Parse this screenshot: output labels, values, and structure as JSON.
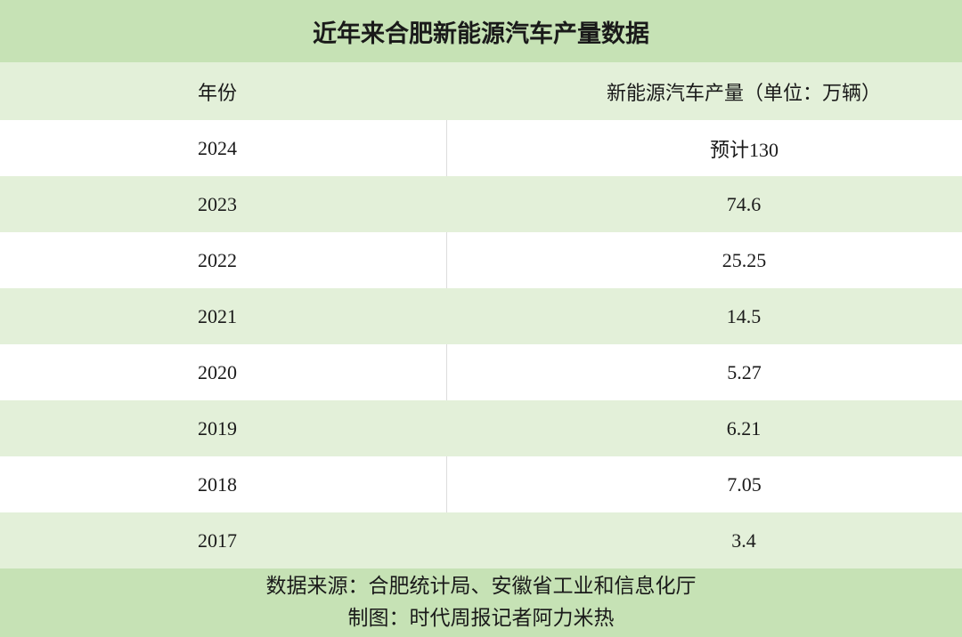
{
  "header": {
    "title": "近年来合肥新能源汽车产量数据"
  },
  "table": {
    "columns": [
      "年份",
      "新能源汽车产量（单位：万辆）"
    ],
    "rows": [
      [
        "2024",
        "预计130"
      ],
      [
        "2023",
        "74.6"
      ],
      [
        "2022",
        "25.25"
      ],
      [
        "2021",
        "14.5"
      ],
      [
        "2020",
        "5.27"
      ],
      [
        "2019",
        "6.21"
      ],
      [
        "2018",
        "7.05"
      ],
      [
        "2017",
        "3.4"
      ]
    ]
  },
  "footer": {
    "source": "数据来源：合肥统计局、安徽省工业和信息化厅",
    "credit": "制图：时代周报记者阿力米热"
  }
}
